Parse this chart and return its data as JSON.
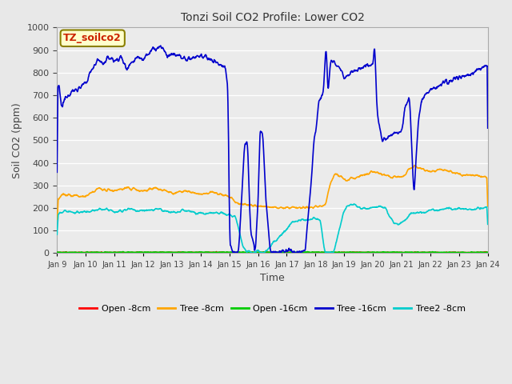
{
  "title": "Tonzi Soil CO2 Profile: Lower CO2",
  "xlabel": "Time",
  "ylabel": "Soil CO2 (ppm)",
  "ylim": [
    0,
    1000
  ],
  "xlim": [
    0,
    15
  ],
  "background_color": "#e8e8e8",
  "plot_bg_color": "#ebebeb",
  "annotation_text": "TZ_soilco2",
  "annotation_bg": "#cc2200",
  "annotation_fg": "#ffffff",
  "annotation_border": "#8B8000",
  "x_tick_labels": [
    "Jan 9",
    "Jan 10",
    "Jan 11",
    "Jan 12",
    "Jan 13",
    "Jan 14",
    "Jan 15",
    "Jan 16",
    "Jan 17",
    "Jan 18",
    "Jan 19",
    "Jan 20",
    "Jan 21",
    "Jan 22",
    "Jan 23",
    "Jan 24"
  ],
  "series": {
    "open_8cm": {
      "color": "#ff0000",
      "linewidth": 0.8,
      "label": "Open -8cm"
    },
    "tree_8cm": {
      "color": "#ffa500",
      "linewidth": 1.2,
      "label": "Tree -8cm"
    },
    "open_16cm": {
      "color": "#00cc00",
      "linewidth": 1.2,
      "label": "Open -16cm"
    },
    "tree_16cm": {
      "color": "#0000cc",
      "linewidth": 1.2,
      "label": "Tree -16cm"
    },
    "tree2_8cm": {
      "color": "#00cccc",
      "linewidth": 1.2,
      "label": "Tree2 -8cm"
    }
  }
}
